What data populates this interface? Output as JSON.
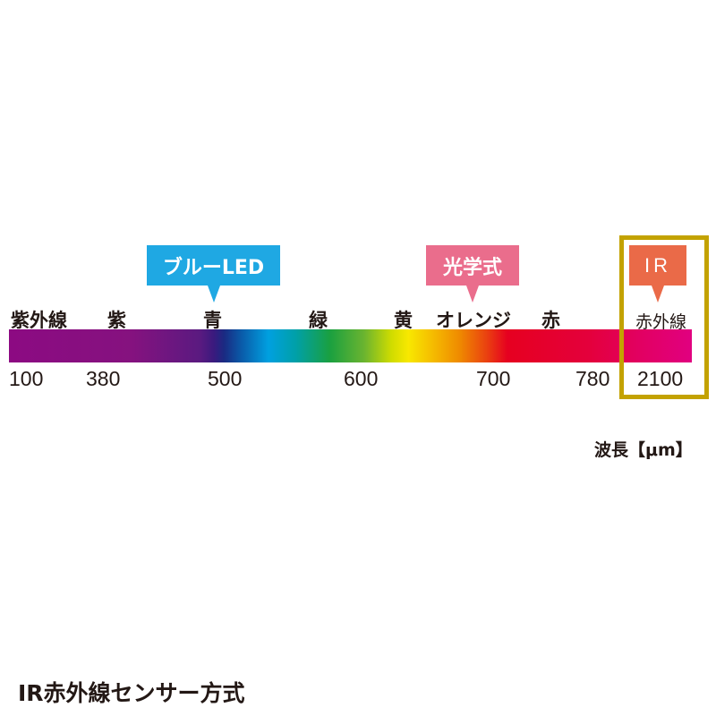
{
  "callouts": [
    {
      "label": "ブルーLED",
      "color": "#1fa8e3"
    },
    {
      "label": "光学式",
      "color": "#ea6d8c"
    },
    {
      "label": "IR",
      "color": "#ea6a48"
    }
  ],
  "bands": [
    "紫外線",
    "紫",
    "青",
    "緑",
    "黄",
    "オレンジ",
    "赤",
    "赤外線"
  ],
  "wavelengths": [
    "100",
    "380",
    "500",
    "600",
    "700",
    "780",
    "2100"
  ],
  "unit": "波長【μm】",
  "highlight_color": "#c3a200",
  "title": "IR赤外線センサー方式"
}
